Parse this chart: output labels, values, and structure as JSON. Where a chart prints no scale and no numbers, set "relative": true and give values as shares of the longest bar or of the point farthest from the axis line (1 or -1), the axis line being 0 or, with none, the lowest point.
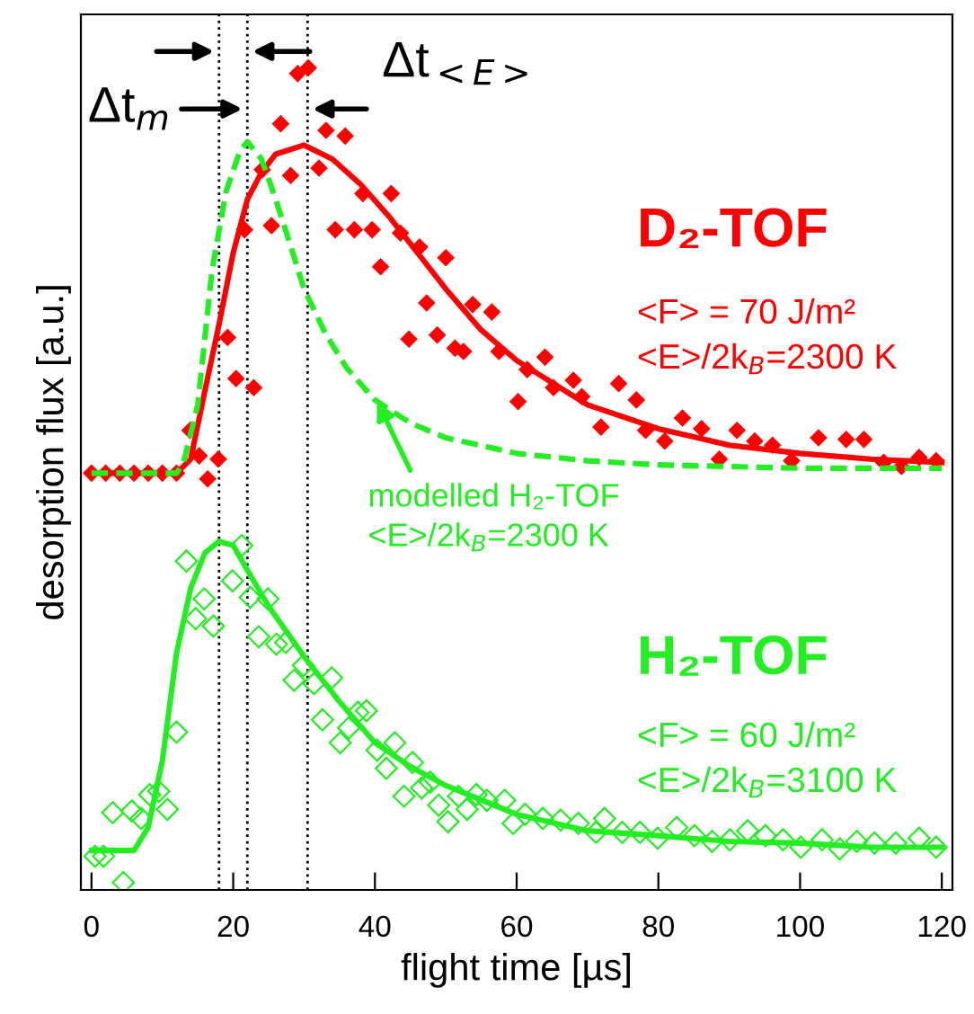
{
  "chart_data": {
    "type": "scatter",
    "relative": true,
    "xlabel": "flight time [µs]",
    "ylabel": "desorption flux [a.u.]",
    "xlim": [
      -1.5,
      121.5
    ],
    "xticks": [
      0,
      20,
      40,
      60,
      80,
      100,
      120
    ],
    "tick_labels": "x",
    "grid": false,
    "legend": false,
    "series": [
      {
        "marker": "diamond",
        "color": "#ff0000",
        "x": [
          0,
          2,
          4,
          6,
          8,
          10,
          12,
          13.9,
          15.2,
          16.4,
          17.9,
          19.2,
          20.4,
          21.6,
          22.9,
          24.1,
          25.4,
          26.7,
          28.1,
          29.1,
          30.6,
          32.1,
          33.1,
          34.4,
          35.8,
          37.1,
          38.3,
          39.6,
          40.8,
          42.3,
          43.6,
          44.8,
          46.3,
          47.3,
          48.8,
          50.0,
          51.3,
          52.5,
          53.8,
          56.5,
          57.5,
          60.2,
          61.5,
          64.0,
          65.2,
          68.0,
          69.2,
          71.9,
          74.4,
          76.9,
          78.2,
          80.9,
          83.4,
          86.1,
          88.6,
          91.1,
          93.6,
          96.1,
          98.8,
          102.6,
          106.5,
          109.0,
          111.8,
          114.3,
          116.8,
          119.2
        ],
        "values": [
          0.507,
          0.507,
          0.507,
          0.507,
          0.507,
          0.507,
          0.507,
          0.559,
          0.528,
          0.5,
          0.524,
          0.672,
          0.622,
          0.803,
          0.611,
          0.876,
          0.808,
          0.932,
          0.869,
          0.993,
          1.0,
          0.878,
          0.924,
          0.803,
          0.917,
          0.803,
          0.847,
          0.803,
          0.758,
          0.847,
          0.799,
          0.67,
          0.782,
          0.714,
          0.675,
          0.769,
          0.659,
          0.655,
          0.712,
          0.703,
          0.655,
          0.594,
          0.633,
          0.648,
          0.611,
          0.62,
          0.6,
          0.563,
          0.616,
          0.596,
          0.559,
          0.546,
          0.574,
          0.561,
          0.524,
          0.559,
          0.546,
          0.541,
          0.522,
          0.55,
          0.548,
          0.548,
          0.52,
          0.515,
          0.526,
          0.522
        ]
      },
      {
        "type": "line",
        "line_style": "solid",
        "color": "#ff0000",
        "x": [
          0,
          12,
          14,
          16,
          18,
          20,
          22,
          24,
          26,
          30,
          34,
          38,
          42,
          46,
          50,
          55,
          60,
          70,
          80,
          90,
          100,
          110,
          120
        ],
        "values": [
          0.507,
          0.507,
          0.524,
          0.607,
          0.688,
          0.775,
          0.84,
          0.873,
          0.895,
          0.906,
          0.889,
          0.858,
          0.819,
          0.775,
          0.731,
          0.681,
          0.644,
          0.59,
          0.561,
          0.541,
          0.531,
          0.524,
          0.52
        ]
      },
      {
        "type": "line",
        "line_style": "dashed",
        "color": "#22ee22",
        "x": [
          0,
          12,
          13,
          15,
          17,
          19,
          21,
          22,
          24,
          26,
          28,
          30,
          33,
          36,
          40,
          45,
          50,
          60,
          70,
          80,
          100,
          120
        ],
        "values": [
          0.507,
          0.507,
          0.52,
          0.59,
          0.753,
          0.85,
          0.9,
          0.91,
          0.889,
          0.84,
          0.786,
          0.731,
          0.677,
          0.635,
          0.596,
          0.568,
          0.55,
          0.531,
          0.522,
          0.517,
          0.513,
          0.513
        ]
      },
      {
        "marker": "diamond",
        "color": "#22ee22",
        "x": [
          0.5,
          1.7,
          3.0,
          4.5,
          5.7,
          7.0,
          8.2,
          9.5,
          10.7,
          12.0,
          13.4,
          14.7,
          15.9,
          17.2,
          19.9,
          21.2,
          22.4,
          23.6,
          24.9,
          26.1,
          27.4,
          28.6,
          29.9,
          31.4,
          32.6,
          33.9,
          35.1,
          36.3,
          37.6,
          38.8,
          40.3,
          41.6,
          42.8,
          44.1,
          45.3,
          46.6,
          47.8,
          49.0,
          50.3,
          51.8,
          53.0,
          54.3,
          55.8,
          58.3,
          59.5,
          61.2,
          63.7,
          66.2,
          68.7,
          71.2,
          72.4,
          74.9,
          77.4,
          79.9,
          82.6,
          85.1,
          87.6,
          90.1,
          92.6,
          95.1,
          97.6,
          100.1,
          103.1,
          105.6,
          108.0,
          110.5,
          113.5,
          116.8,
          119.2
        ],
        "values": [
          0.041,
          0.041,
          0.094,
          0.009,
          0.096,
          0.087,
          0.116,
          0.12,
          0.098,
          0.192,
          0.4,
          0.33,
          0.354,
          0.321,
          0.376,
          0.419,
          0.356,
          0.308,
          0.354,
          0.299,
          0.301,
          0.255,
          0.273,
          0.251,
          0.207,
          0.258,
          0.179,
          0.197,
          0.216,
          0.218,
          0.17,
          0.148,
          0.179,
          0.114,
          0.155,
          0.124,
          0.131,
          0.103,
          0.083,
          0.114,
          0.098,
          0.116,
          0.109,
          0.109,
          0.081,
          0.092,
          0.087,
          0.085,
          0.081,
          0.07,
          0.087,
          0.07,
          0.07,
          0.063,
          0.076,
          0.066,
          0.059,
          0.061,
          0.072,
          0.066,
          0.061,
          0.052,
          0.061,
          0.05,
          0.059,
          0.057,
          0.057,
          0.063,
          0.052
        ]
      },
      {
        "type": "line",
        "line_style": "solid",
        "color": "#22ee22",
        "x": [
          0,
          6,
          8,
          10,
          12,
          14,
          16,
          18,
          20,
          22,
          25,
          30,
          35,
          40,
          45,
          50,
          60,
          70,
          80,
          90,
          100,
          110,
          120
        ],
        "values": [
          0.048,
          0.048,
          0.076,
          0.157,
          0.288,
          0.367,
          0.41,
          0.424,
          0.419,
          0.389,
          0.345,
          0.284,
          0.229,
          0.179,
          0.15,
          0.127,
          0.092,
          0.072,
          0.066,
          0.059,
          0.057,
          0.052,
          0.052
        ]
      }
    ],
    "ref_lines": [
      {
        "axis": "x",
        "value": 18,
        "color": "#000000",
        "line_style": "dotted"
      },
      {
        "axis": "x",
        "value": 22,
        "color": "#000000",
        "line_style": "dotted"
      },
      {
        "axis": "x",
        "value": 30.5,
        "color": "#000000",
        "line_style": "dotted"
      }
    ],
    "annotations": [
      "D₂-TOF",
      "<F> = 70 J/m²",
      "<E>/2k$_{B}$=2300 K",
      {
        "text": "modelled H₂-TOF\n<E>/2k$_{B}$=2300 K",
        "x": 40,
        "y": 0.6
      },
      "H₂-TOF",
      "<F> = 60 J/m²",
      "<E>/2k$_{B}$=3100 K",
      {
        "text": "Δt$_{m}$",
        "x": 22,
        "y": 0.95
      },
      {
        "text": "Δt$_{<E>}$",
        "x": 30.5,
        "y": 0.95
      }
    ]
  }
}
